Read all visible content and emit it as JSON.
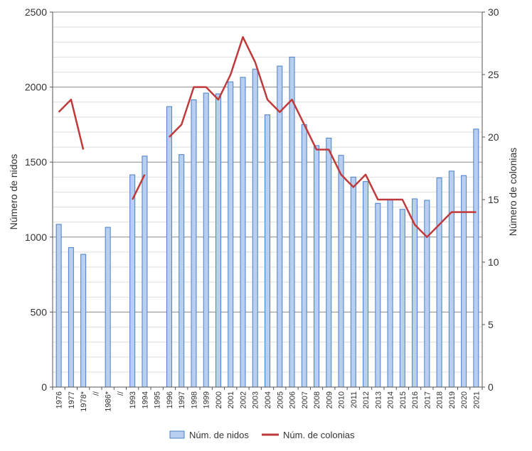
{
  "chart_data": {
    "type": "bar",
    "title": "",
    "categories": [
      "1976",
      "1977",
      "1978*",
      "//",
      "1986*",
      "//",
      "1993",
      "1994",
      "1995",
      "1996",
      "1997",
      "1998",
      "1999",
      "2000",
      "2001",
      "2002",
      "2003",
      "2004",
      "2005",
      "2006",
      "2007",
      "2008",
      "2009",
      "2010",
      "2011",
      "2012",
      "2013",
      "2014",
      "2015",
      "2016",
      "2017",
      "2018",
      "2019",
      "2020",
      "2021"
    ],
    "series": [
      {
        "name": "Núm. de nidos",
        "type": "bar",
        "axis": "left",
        "color": "#b8cff0",
        "stroke": "#4a7fc8",
        "values": [
          1085,
          930,
          885,
          null,
          1065,
          null,
          1415,
          1540,
          null,
          1870,
          1550,
          1915,
          1960,
          1955,
          2035,
          2065,
          2120,
          1815,
          2140,
          2200,
          1750,
          1610,
          1660,
          1545,
          1400,
          1370,
          1225,
          1250,
          1185,
          1255,
          1245,
          1395,
          1440,
          1410,
          1720
        ]
      },
      {
        "name": "Núm. de colonias",
        "type": "line",
        "axis": "right",
        "color": "#c0393b",
        "values": [
          22,
          23,
          19,
          null,
          null,
          null,
          15,
          17,
          null,
          20,
          21,
          24,
          24,
          23,
          25,
          28,
          26,
          23,
          22,
          23,
          21,
          19,
          19,
          17,
          16,
          17,
          15,
          15,
          15,
          13,
          12,
          13,
          14,
          14,
          14
        ]
      }
    ],
    "ylabel": "Número de nidos",
    "y2label": "Número de colonias",
    "ylim": [
      0,
      2500
    ],
    "y2lim": [
      0,
      30
    ],
    "yticks": [
      "0",
      "500",
      "1000",
      "1500",
      "2000",
      "2500"
    ],
    "y2ticks": [
      "0",
      "5",
      "10",
      "15",
      "20",
      "25",
      "30"
    ],
    "grid": true,
    "legend_position": "bottom"
  }
}
